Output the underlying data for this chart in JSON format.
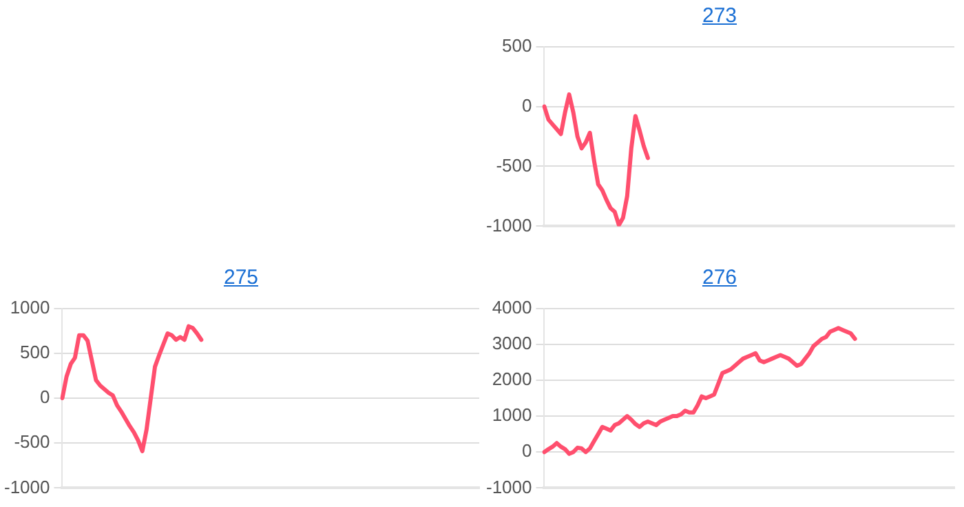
{
  "chart_data": [
    {
      "type": "line",
      "title": "273",
      "categories": [
        null,
        null,
        null,
        null,
        null,
        null,
        null,
        null,
        null,
        null,
        null,
        null,
        null,
        null,
        null,
        null,
        null,
        null,
        null,
        null,
        null,
        null,
        null,
        null,
        null,
        null,
        null,
        null,
        null,
        null,
        null,
        null,
        null,
        null,
        null,
        null,
        null,
        null,
        null,
        null,
        null,
        null,
        null,
        null,
        null,
        null,
        null,
        null,
        null,
        null,
        null,
        null,
        null,
        null,
        null,
        null,
        null,
        null,
        null,
        null,
        null,
        null,
        null,
        null,
        null,
        null,
        null,
        null,
        null,
        null,
        null,
        null,
        null,
        null,
        null,
        null,
        null,
        null,
        null,
        null,
        null,
        null,
        null,
        null,
        null,
        null,
        null,
        null,
        null,
        null,
        null,
        null,
        null,
        null,
        null,
        null,
        null,
        null,
        null,
        null
      ],
      "series": [
        {
          "color": "#ff4f6e",
          "values": [
            0,
            -110,
            -150,
            -190,
            -230,
            -50,
            100,
            -50,
            -250,
            -350,
            -300,
            -220,
            -450,
            -650,
            -700,
            -780,
            -850,
            -880,
            -990,
            -930,
            -750,
            -350,
            -80,
            -200,
            -330,
            -430,
            null,
            null,
            null,
            null,
            null,
            null,
            null,
            null,
            null,
            null,
            null,
            null,
            null,
            null,
            null,
            null,
            null,
            null,
            null,
            null,
            null,
            null,
            null,
            null,
            null,
            null,
            null,
            null,
            null,
            null,
            null,
            null,
            null,
            null,
            null,
            null,
            null,
            null,
            null,
            null,
            null,
            null,
            null,
            null,
            null,
            null,
            null,
            null,
            null,
            null,
            null,
            null,
            null,
            null,
            null,
            null,
            null,
            null,
            null,
            null,
            null,
            null,
            null,
            null,
            null,
            null,
            null,
            null,
            null,
            null,
            null,
            null,
            null,
            null
          ]
        }
      ],
      "ylim": [
        -1000,
        500
      ],
      "yticks": [
        -1000,
        -500,
        0,
        500
      ],
      "grid": "y",
      "tick_labels": "y",
      "marker": "none",
      "line_style": "solid"
    },
    {
      "type": "line",
      "title": "275",
      "categories": [
        null,
        null,
        null,
        null,
        null,
        null,
        null,
        null,
        null,
        null,
        null,
        null,
        null,
        null,
        null,
        null,
        null,
        null,
        null,
        null,
        null,
        null,
        null,
        null,
        null,
        null,
        null,
        null,
        null,
        null,
        null,
        null,
        null,
        null,
        null,
        null,
        null,
        null,
        null,
        null,
        null,
        null,
        null,
        null,
        null,
        null,
        null,
        null,
        null,
        null,
        null,
        null,
        null,
        null,
        null,
        null,
        null,
        null,
        null,
        null,
        null,
        null,
        null,
        null,
        null,
        null,
        null,
        null,
        null,
        null,
        null,
        null,
        null,
        null,
        null,
        null,
        null,
        null,
        null,
        null,
        null,
        null,
        null,
        null,
        null,
        null,
        null,
        null,
        null,
        null,
        null,
        null,
        null,
        null,
        null,
        null,
        null,
        null,
        null,
        null
      ],
      "series": [
        {
          "color": "#ff4f6e",
          "values": [
            0,
            240,
            380,
            450,
            700,
            700,
            640,
            420,
            200,
            140,
            100,
            60,
            30,
            -80,
            -150,
            -230,
            -310,
            -380,
            -470,
            -590,
            -350,
            0,
            350,
            480,
            600,
            720,
            700,
            650,
            680,
            650,
            800,
            780,
            720,
            650,
            null,
            null,
            null,
            null,
            null,
            null,
            null,
            null,
            null,
            null,
            null,
            null,
            null,
            null,
            null,
            null,
            null,
            null,
            null,
            null,
            null,
            null,
            null,
            null,
            null,
            null,
            null,
            null,
            null,
            null,
            null,
            null,
            null,
            null,
            null,
            null,
            null,
            null,
            null,
            null,
            null,
            null,
            null,
            null,
            null,
            null,
            null,
            null,
            null,
            null,
            null,
            null,
            null,
            null,
            null,
            null,
            null,
            null,
            null,
            null,
            null,
            null,
            null,
            null,
            null,
            null
          ]
        }
      ],
      "ylim": [
        -1000,
        1000
      ],
      "yticks": [
        -1000,
        -500,
        0,
        500,
        1000
      ],
      "grid": "y",
      "tick_labels": "y",
      "marker": "none",
      "line_style": "solid"
    },
    {
      "type": "line",
      "title": "276",
      "categories": [
        null,
        null,
        null,
        null,
        null,
        null,
        null,
        null,
        null,
        null,
        null,
        null,
        null,
        null,
        null,
        null,
        null,
        null,
        null,
        null,
        null,
        null,
        null,
        null,
        null,
        null,
        null,
        null,
        null,
        null,
        null,
        null,
        null,
        null,
        null,
        null,
        null,
        null,
        null,
        null,
        null,
        null,
        null,
        null,
        null,
        null,
        null,
        null,
        null,
        null,
        null,
        null,
        null,
        null,
        null,
        null,
        null,
        null,
        null,
        null,
        null,
        null,
        null,
        null,
        null,
        null,
        null,
        null,
        null,
        null,
        null,
        null,
        null,
        null,
        null,
        null,
        null,
        null,
        null,
        null,
        null,
        null,
        null,
        null,
        null,
        null,
        null,
        null,
        null,
        null,
        null,
        null,
        null,
        null,
        null,
        null,
        null,
        null,
        null,
        null
      ],
      "series": [
        {
          "color": "#ff4f6e",
          "values": [
            0,
            80,
            150,
            250,
            150,
            80,
            -50,
            0,
            120,
            100,
            0,
            100,
            300,
            500,
            700,
            650,
            600,
            750,
            800,
            900,
            1000,
            900,
            780,
            700,
            800,
            850,
            800,
            750,
            850,
            900,
            950,
            1000,
            1000,
            1050,
            1150,
            1100,
            1100,
            1300,
            1550,
            1500,
            1550,
            1600,
            1900,
            2200,
            2250,
            2300,
            2400,
            2500,
            2600,
            2650,
            2700,
            2750,
            2550,
            2500,
            2550,
            2600,
            2650,
            2700,
            2650,
            2600,
            2500,
            2400,
            2450,
            2600,
            2750,
            2950,
            3050,
            3150,
            3200,
            3350,
            3400,
            3450,
            3400,
            3350,
            3300,
            3150,
            null,
            null,
            null,
            null,
            null,
            null,
            null,
            null,
            null,
            null,
            null,
            null,
            null,
            null,
            null,
            null,
            null,
            null,
            null,
            null,
            null,
            null,
            null,
            null
          ]
        }
      ],
      "ylim": [
        -1000,
        4000
      ],
      "yticks": [
        -1000,
        0,
        1000,
        2000,
        3000,
        4000
      ],
      "grid": "y",
      "tick_labels": "y",
      "marker": "none",
      "line_style": "solid"
    }
  ]
}
